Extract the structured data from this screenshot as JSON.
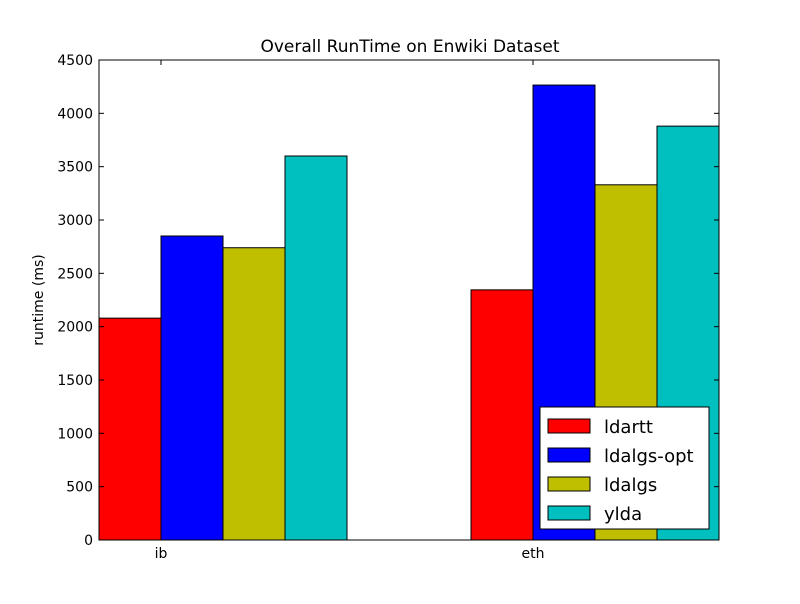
{
  "chart_data": {
    "type": "bar",
    "title": "Overall RunTime on Enwiki Dataset",
    "xlabel": "",
    "ylabel": "runtime (ms)",
    "categories": [
      "ib",
      "eth"
    ],
    "ylim": [
      0,
      4500
    ],
    "yticks": [
      0,
      500,
      1000,
      1500,
      2000,
      2500,
      3000,
      3500,
      4000,
      4500
    ],
    "grid": false,
    "legend_position": "lower-right",
    "series": [
      {
        "name": "ldartt",
        "color": "#ff0000",
        "values": [
          2080,
          2345
        ]
      },
      {
        "name": "ldalgs-opt",
        "color": "#0000ff",
        "values": [
          2850,
          4265
        ]
      },
      {
        "name": "ldalgs",
        "color": "#bfbf00",
        "values": [
          2740,
          3330
        ]
      },
      {
        "name": "ylda",
        "color": "#00bfbf",
        "values": [
          3600,
          3880
        ]
      }
    ]
  }
}
